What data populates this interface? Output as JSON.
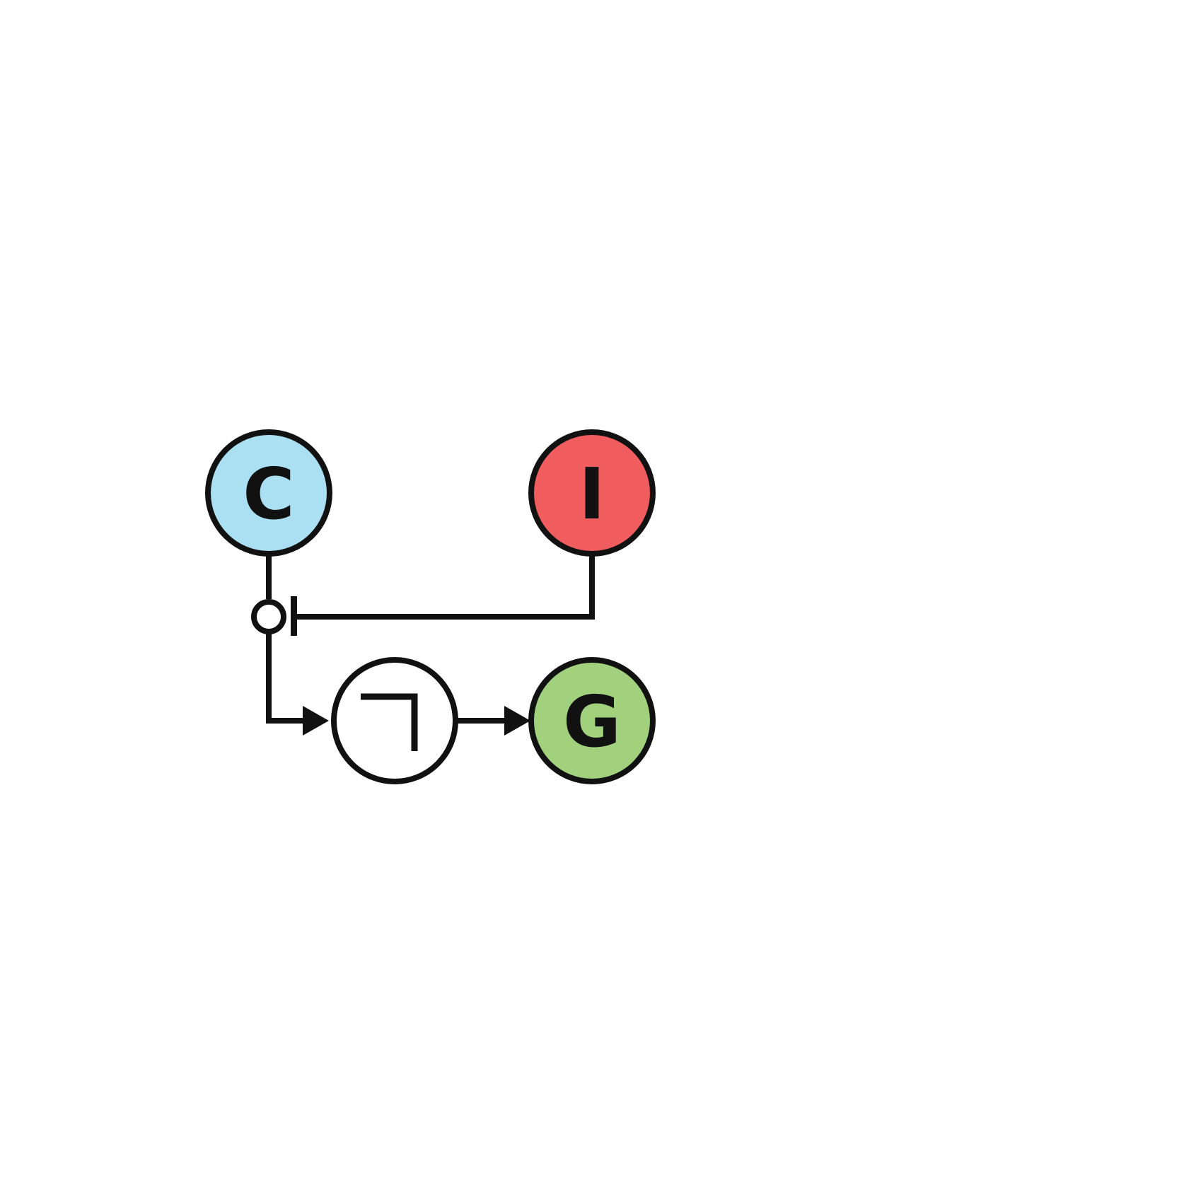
{
  "nodes": {
    "c": {
      "label": "C",
      "fill": "#abe0f3"
    },
    "i": {
      "label": "I",
      "fill": "#f15c5e"
    },
    "not": {
      "symbol": "¬",
      "fill": "#ffffff"
    },
    "g": {
      "label": "G",
      "fill": "#a1d17d"
    }
  },
  "edges": [
    {
      "from": "I",
      "to": "C→¬ link",
      "type": "inhibition"
    },
    {
      "from": "C",
      "to": "¬",
      "type": "activation"
    },
    {
      "from": "¬",
      "to": "G",
      "type": "activation"
    }
  ],
  "colors": {
    "stroke": "#111111"
  }
}
